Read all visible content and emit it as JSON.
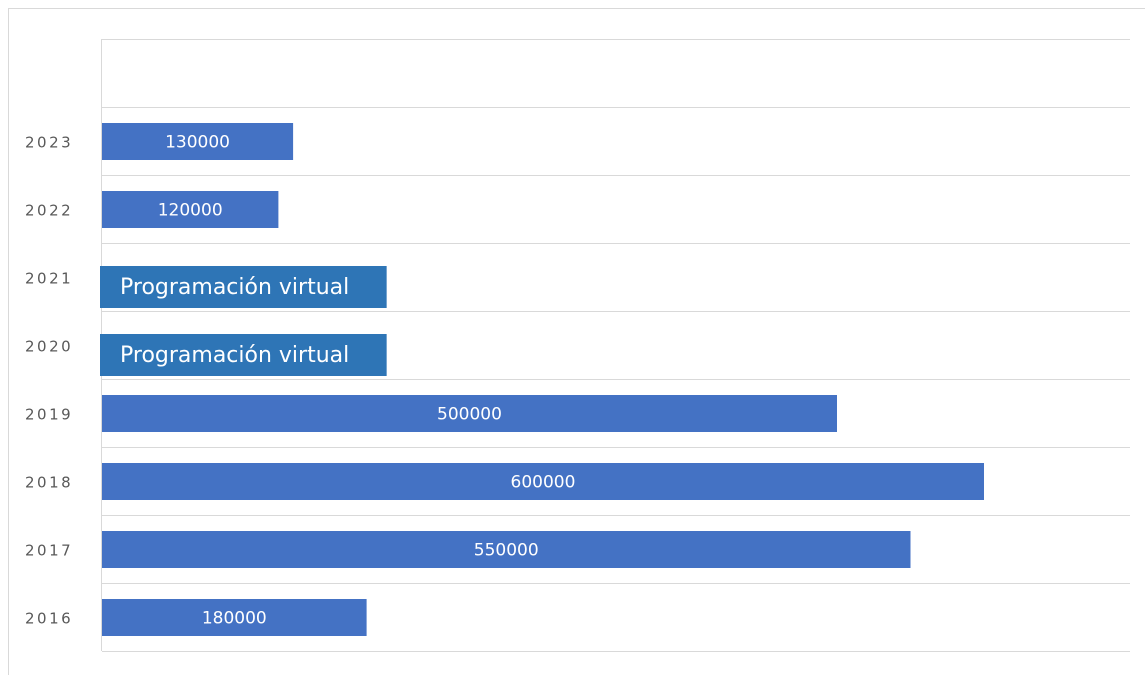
{
  "chart_data": {
    "type": "bar",
    "orientation": "horizontal",
    "categories": [
      "2016",
      "2017",
      "2018",
      "2019",
      "2020",
      "2021",
      "2022",
      "2023"
    ],
    "values": [
      180000,
      550000,
      600000,
      500000,
      null,
      null,
      120000,
      130000
    ],
    "data_labels": [
      "180000",
      "550000",
      "600000",
      "500000",
      "Programación virtual",
      "Programación virtual",
      "120000",
      "130000"
    ],
    "title": "",
    "xlabel": "",
    "ylabel": "",
    "xlim": [
      0,
      700000
    ],
    "grid": true,
    "legend": "none",
    "overlay_value_for_virtual": 195000,
    "colors": {
      "bar": "#4472c4",
      "overlay": "#2e75b6",
      "grid": "#d9d9d9",
      "label": "#595959"
    }
  }
}
